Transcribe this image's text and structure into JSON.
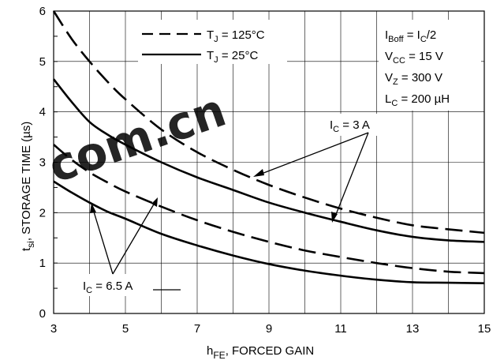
{
  "chart_data": {
    "type": "line",
    "xlabel": "h",
    "xlabel_sub": "FE",
    "xlabel_suffix": ", FORCED GAIN",
    "ylabel": "t",
    "ylabel_sub": "si",
    "ylabel_suffix": ", STORAGE TIME (µs)",
    "xlim": [
      3,
      15
    ],
    "ylim": [
      0,
      6
    ],
    "x_ticks": [
      3,
      5,
      7,
      9,
      11,
      13,
      15
    ],
    "y_ticks": [
      0,
      1,
      2,
      3,
      4,
      5,
      6
    ],
    "grid": true,
    "legend_position": "top-center",
    "legend": [
      {
        "label": "T",
        "sub": "J",
        "suffix": " = 125°C",
        "style": "dashed"
      },
      {
        "label": "T",
        "sub": "J",
        "suffix": " = 25°C",
        "style": "solid"
      }
    ],
    "conditions": [
      {
        "pre": "I",
        "sub": "Boff",
        "mid": " = I",
        "sub2": "C",
        "post": "/2"
      },
      {
        "pre": "V",
        "sub": "CC",
        "mid": " = 15 V",
        "sub2": "",
        "post": ""
      },
      {
        "pre": "V",
        "sub": "Z",
        "mid": " = 300 V",
        "sub2": "",
        "post": ""
      },
      {
        "pre": "L",
        "sub": "C",
        "mid": " = 200 µH",
        "sub2": "",
        "post": ""
      }
    ],
    "annotations": [
      {
        "pre": "I",
        "sub": "C",
        "post": " = 3 A"
      },
      {
        "pre": "I",
        "sub": "C",
        "post": " = 6.5 A"
      }
    ],
    "series": [
      {
        "group": "IC = 3 A",
        "temp": "125°C",
        "style": "dashed",
        "x": [
          3,
          3.5,
          4,
          4.5,
          5,
          6,
          7,
          8,
          9,
          10,
          11,
          12,
          13,
          14,
          15
        ],
        "y": [
          6.0,
          5.45,
          5.0,
          4.6,
          4.25,
          3.65,
          3.2,
          2.85,
          2.55,
          2.3,
          2.08,
          1.9,
          1.75,
          1.67,
          1.6
        ]
      },
      {
        "group": "IC = 3 A",
        "temp": "25°C",
        "style": "solid",
        "x": [
          3,
          3.5,
          4,
          4.5,
          5,
          6,
          7,
          8,
          9,
          10,
          11,
          12,
          13,
          14,
          15
        ],
        "y": [
          4.65,
          4.2,
          3.8,
          3.55,
          3.35,
          3.0,
          2.7,
          2.45,
          2.2,
          2.0,
          1.82,
          1.65,
          1.52,
          1.45,
          1.42
        ]
      },
      {
        "group": "IC = 6.5 A",
        "temp": "125°C",
        "style": "dashed",
        "x": [
          3,
          3.5,
          4,
          4.5,
          5,
          6,
          7,
          8,
          9,
          10,
          11,
          12,
          13,
          14,
          15
        ],
        "y": [
          3.35,
          3.05,
          2.8,
          2.6,
          2.42,
          2.12,
          1.85,
          1.62,
          1.42,
          1.25,
          1.12,
          1.0,
          0.9,
          0.83,
          0.8
        ]
      },
      {
        "group": "IC = 6.5 A",
        "temp": "25°C",
        "style": "solid",
        "x": [
          3,
          3.5,
          4,
          4.5,
          5,
          6,
          7,
          8,
          9,
          10,
          11,
          12,
          13,
          14,
          15
        ],
        "y": [
          2.62,
          2.4,
          2.2,
          2.02,
          1.88,
          1.58,
          1.35,
          1.15,
          0.98,
          0.85,
          0.75,
          0.67,
          0.62,
          0.61,
          0.6
        ]
      }
    ],
    "watermark": "com.cn"
  }
}
